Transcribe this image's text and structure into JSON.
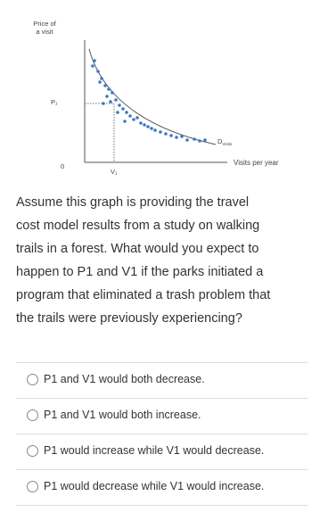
{
  "figure": {
    "y_axis_label": [
      "Price of",
      "a visit"
    ],
    "price_label": "P₁",
    "origin_label": "0",
    "visits_label": "V₁",
    "demand_label": "D",
    "demand_subscript": "Visits",
    "x_axis_label": "Visits per year"
  },
  "question": {
    "lines": [
      "Assume this graph is providing the travel",
      "cost model results from a study on walking",
      "trails in a forest. What would you expect to",
      "happen to P1 and V1 if the parks initiated a",
      "program that eliminated a trash problem that",
      "the trails were previously experiencing?"
    ]
  },
  "options": [
    "P1 and V1 would both decrease.",
    "P1 and V1 would both increase.",
    "P1 would increase while V1 would decrease.",
    "P1 would decrease while V1 would increase."
  ]
}
